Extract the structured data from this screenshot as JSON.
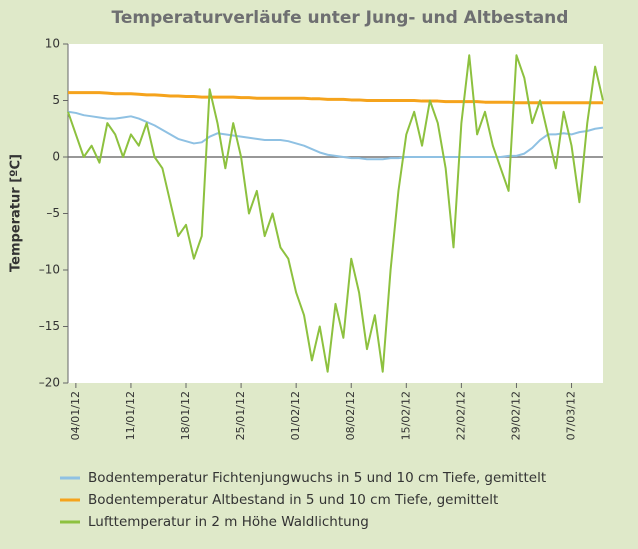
{
  "chart_data": {
    "type": "line",
    "title": "Temperaturverläufe unter Jung- und Altbestand",
    "y_label": "Temperatur [ºC]",
    "x": [
      "2012-01-03",
      "2012-01-04",
      "2012-01-05",
      "2012-01-06",
      "2012-01-07",
      "2012-01-08",
      "2012-01-09",
      "2012-01-10",
      "2012-01-11",
      "2012-01-12",
      "2012-01-13",
      "2012-01-14",
      "2012-01-15",
      "2012-01-16",
      "2012-01-17",
      "2012-01-18",
      "2012-01-19",
      "2012-01-20",
      "2012-01-21",
      "2012-01-22",
      "2012-01-23",
      "2012-01-24",
      "2012-01-25",
      "2012-01-26",
      "2012-01-27",
      "2012-01-28",
      "2012-01-29",
      "2012-01-30",
      "2012-01-31",
      "2012-02-01",
      "2012-02-02",
      "2012-02-03",
      "2012-02-04",
      "2012-02-05",
      "2012-02-06",
      "2012-02-07",
      "2012-02-08",
      "2012-02-09",
      "2012-02-10",
      "2012-02-11",
      "2012-02-12",
      "2012-02-13",
      "2012-02-14",
      "2012-02-15",
      "2012-02-16",
      "2012-02-17",
      "2012-02-18",
      "2012-02-19",
      "2012-02-20",
      "2012-02-21",
      "2012-02-22",
      "2012-02-23",
      "2012-02-24",
      "2012-02-25",
      "2012-02-26",
      "2012-02-27",
      "2012-02-28",
      "2012-02-29",
      "2012-03-01",
      "2012-03-02",
      "2012-03-03",
      "2012-03-04",
      "2012-03-05",
      "2012-03-06",
      "2012-03-07",
      "2012-03-08",
      "2012-03-09",
      "2012-03-10",
      "2012-03-11"
    ],
    "series": [
      {
        "name": "Bodentemperatur Fichtenjungwuchs in 5 und 10 cm Tiefe, gemittelt",
        "color": "#8fc1e3",
        "values": [
          4,
          3.9,
          3.7,
          3.6,
          3.5,
          3.4,
          3.4,
          3.5,
          3.6,
          3.4,
          3.1,
          2.8,
          2.4,
          2,
          1.6,
          1.4,
          1.2,
          1.3,
          1.8,
          2.1,
          2,
          1.9,
          1.8,
          1.7,
          1.6,
          1.5,
          1.5,
          1.5,
          1.4,
          1.2,
          1,
          0.7,
          0.4,
          0.2,
          0.1,
          0,
          -0.1,
          -0.1,
          -0.2,
          -0.2,
          -0.2,
          -0.1,
          -0.1,
          0,
          0,
          0,
          0,
          0,
          0,
          0,
          0,
          0,
          0,
          0,
          0,
          0,
          0.1,
          0.1,
          0.3,
          0.8,
          1.5,
          2,
          2,
          2.1,
          2,
          2.2,
          2.3,
          2.5,
          2.6
        ]
      },
      {
        "name": "Bodentemperatur Altbestand in 5 und 10 cm Tiefe, gemittelt",
        "color": "#f5a31c",
        "values": [
          5.7,
          5.7,
          5.7,
          5.7,
          5.7,
          5.65,
          5.6,
          5.6,
          5.6,
          5.55,
          5.5,
          5.5,
          5.45,
          5.4,
          5.4,
          5.35,
          5.35,
          5.3,
          5.3,
          5.3,
          5.3,
          5.3,
          5.25,
          5.25,
          5.2,
          5.2,
          5.2,
          5.2,
          5.2,
          5.2,
          5.2,
          5.15,
          5.15,
          5.1,
          5.1,
          5.1,
          5.05,
          5.05,
          5,
          5,
          5,
          5,
          5,
          5,
          5,
          4.95,
          4.95,
          4.95,
          4.9,
          4.9,
          4.9,
          4.9,
          4.9,
          4.85,
          4.85,
          4.85,
          4.85,
          4.8,
          4.8,
          4.8,
          4.8,
          4.8,
          4.8,
          4.8,
          4.8,
          4.8,
          4.8,
          4.8,
          4.8
        ]
      },
      {
        "name": "Lufttemperatur in 2 m Höhe Waldlichtung",
        "color": "#8dc13f",
        "values": [
          4,
          2,
          0,
          1,
          -0.5,
          3,
          2,
          0,
          2,
          1,
          3,
          0,
          -1,
          -4,
          -7,
          -6,
          -9,
          -7,
          6,
          3,
          -1,
          3,
          0,
          -5,
          -3,
          -7,
          -5,
          -8,
          -9,
          -12,
          -14,
          -18,
          -15,
          -19,
          -13,
          -16,
          -9,
          -12,
          -17,
          -14,
          -19,
          -10,
          -3,
          2,
          4,
          1,
          5,
          3,
          -1,
          -8,
          3,
          9,
          2,
          4,
          1,
          -1,
          -3,
          9,
          7,
          3,
          5,
          2,
          -1,
          4,
          1,
          -4,
          3,
          8,
          5
        ]
      }
    ],
    "xlim": [
      "2012-01-03",
      "2012-03-11"
    ],
    "xticks": [
      {
        "value": "2012-01-04",
        "label": "04/01/12"
      },
      {
        "value": "2012-01-11",
        "label": "11/01/12"
      },
      {
        "value": "2012-01-18",
        "label": "18/01/12"
      },
      {
        "value": "2012-01-25",
        "label": "25/01/12"
      },
      {
        "value": "2012-02-01",
        "label": "01/02/12"
      },
      {
        "value": "2012-02-08",
        "label": "08/02/12"
      },
      {
        "value": "2012-02-15",
        "label": "15/02/12"
      },
      {
        "value": "2012-02-22",
        "label": "22/02/12"
      },
      {
        "value": "2012-02-29",
        "label": "29/02/12"
      },
      {
        "value": "2012-03-07",
        "label": "07/03/12"
      }
    ],
    "ylim": [
      -20,
      10
    ],
    "yticks": [
      {
        "value": -20,
        "label": "–20"
      },
      {
        "value": -15,
        "label": "–15"
      },
      {
        "value": -10,
        "label": "–10"
      },
      {
        "value": -5,
        "label": "–5"
      },
      0,
      5,
      10
    ],
    "legend": "bottom"
  }
}
